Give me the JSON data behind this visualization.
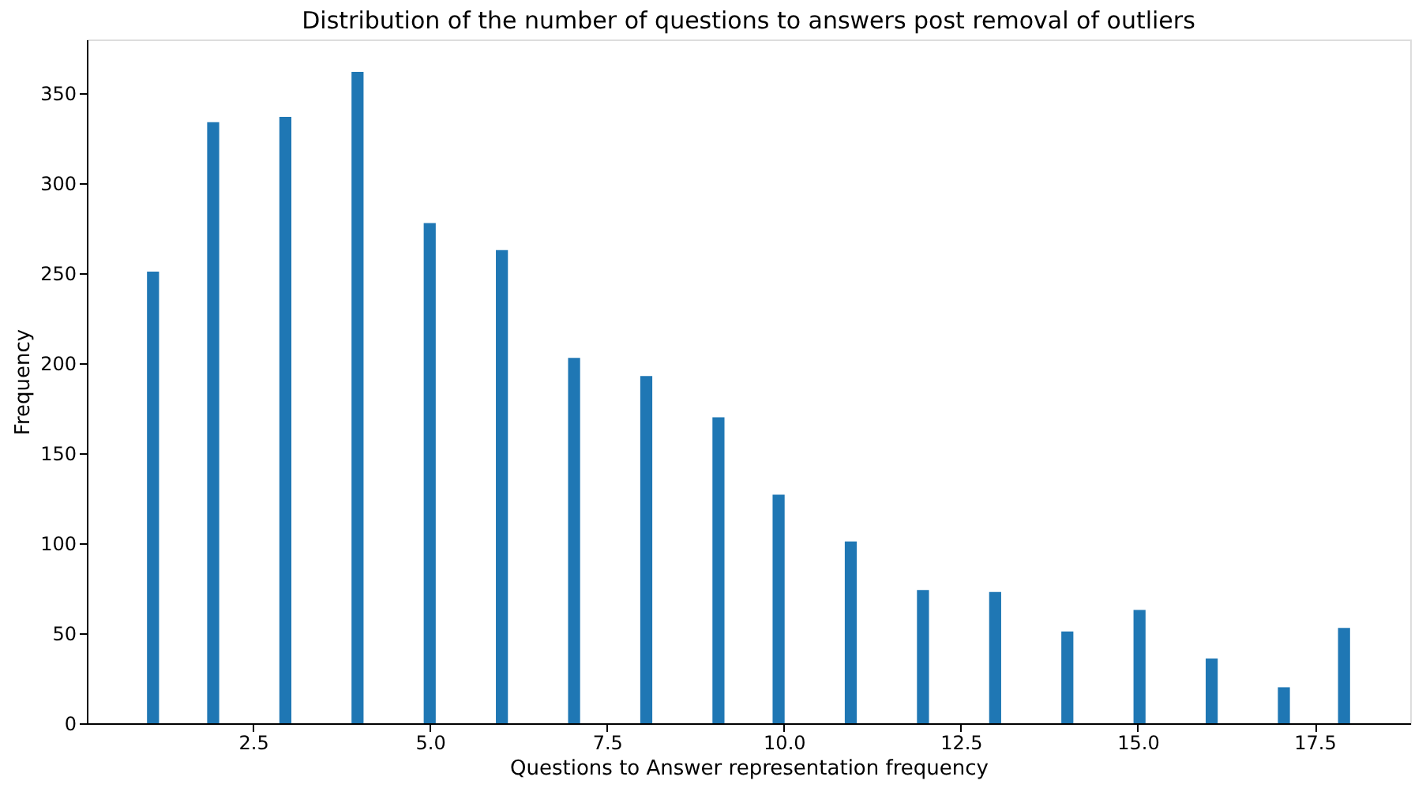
{
  "chart_data": {
    "type": "histogram",
    "title": "Distribution of the number of questions to answers post removal of outliers",
    "xlabel": "Questions to Answer representation frequency",
    "ylabel": "Frequency",
    "bins": [
      1,
      1.17,
      1.85,
      2.02,
      2.87,
      3.04,
      3.89,
      4.06,
      4.91,
      5.08,
      5.93,
      6.1,
      6.95,
      7.12,
      7.97,
      8.14,
      8.99,
      9.16,
      9.84,
      10.01,
      10.86,
      11.03,
      11.88,
      12.05,
      12.9,
      13.07,
      13.92,
      14.09,
      14.94,
      15.11,
      15.96,
      16.13,
      16.98,
      17.15,
      17.83,
      18
    ],
    "values": [
      251,
      0,
      334,
      0,
      337,
      0,
      362,
      0,
      278,
      0,
      263,
      0,
      203,
      0,
      193,
      0,
      170,
      0,
      127,
      0,
      101,
      0,
      74,
      0,
      73,
      0,
      51,
      0,
      63,
      0,
      36,
      0,
      20,
      0,
      53
    ],
    "color": "#1f77b4",
    "xlim": [
      0.15,
      18.85
    ],
    "xticks": [
      2.5,
      {
        "value": 5,
        "label": "5.0"
      },
      7.5,
      {
        "value": 10,
        "label": "10.0"
      },
      12.5,
      {
        "value": 15,
        "label": "15.0"
      },
      17.5
    ],
    "ylim": [
      0,
      380
    ],
    "yticks": [
      0,
      50,
      100,
      150,
      200,
      250,
      300,
      350
    ],
    "grid": false
  }
}
